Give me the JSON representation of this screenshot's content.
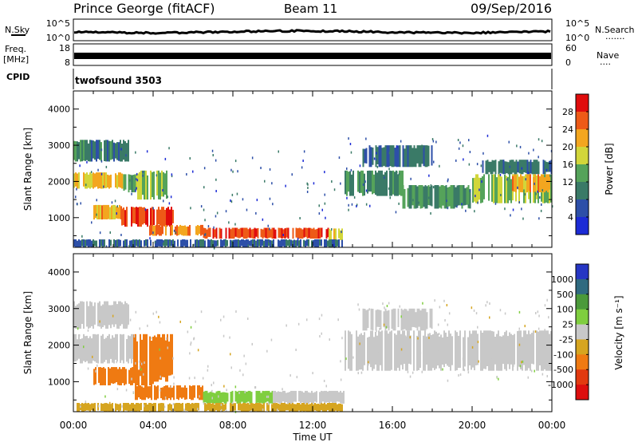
{
  "header": {
    "station": "Prince George (fitACF)",
    "beam": "Beam 11",
    "date": "09/Sep/2016"
  },
  "strip_labels": {
    "nsky": "N.Sky",
    "nsearch": "N.Search",
    "nsearch_dots": ".......",
    "freq_line1": "Freq.",
    "freq_line2": "[MHz]",
    "nave": "Nave",
    "nave_dots": "....",
    "cpid": "CPID",
    "cpid_value": "twofsound 3503",
    "nsky_ticks": [
      "10^5",
      "10^0"
    ],
    "nsearch_ticks": [
      "10^5",
      "10^0"
    ],
    "freq_ticks": [
      "18",
      "8"
    ],
    "nave_ticks": [
      "60",
      "0"
    ]
  },
  "axis": {
    "xlabel": "Time UT",
    "ylabel": "Slant Range [km]",
    "xticks": [
      "00:00",
      "04:00",
      "08:00",
      "12:00",
      "16:00",
      "20:00",
      "00:00"
    ],
    "yticks": [
      "1000",
      "2000",
      "3000",
      "4000"
    ]
  },
  "colorbars": {
    "power": {
      "label": "Power [dB]",
      "ticks": [
        "4",
        "8",
        "12",
        "16",
        "20",
        "24",
        "28"
      ],
      "colors": [
        "#1c2bd6",
        "#2d4fa8",
        "#3a7a67",
        "#55a35a",
        "#d2d63a",
        "#f3a61f",
        "#ee5a17",
        "#e00c0c"
      ]
    },
    "velocity": {
      "label": "Velocity [m s⁻¹]",
      "ticks": [
        "1000",
        "500",
        "100",
        "25",
        "-25",
        "-100",
        "-500",
        "-1000"
      ],
      "colors": [
        "#2636c4",
        "#2f6a80",
        "#4b9a3a",
        "#7fce3f",
        "#c8c8c8",
        "#d6a520",
        "#ef7a12",
        "#e23a10",
        "#dd0e0e"
      ]
    }
  },
  "chart_data": [
    {
      "type": "heatmap",
      "title": "Power",
      "xlabel": "Time UT",
      "ylabel": "Slant Range [km]",
      "xlim": [
        0,
        24
      ],
      "ylim": [
        180,
        4500
      ],
      "colorbar": "Power [dB]",
      "colorbar_range": [
        0,
        30
      ],
      "bands": [
        {
          "t0": 0.0,
          "t1": 2.8,
          "r0": 2550,
          "r1": 3150,
          "value": 10
        },
        {
          "t0": 0.0,
          "t1": 2.5,
          "r0": 1800,
          "r1": 2250,
          "value": 21
        },
        {
          "t0": 2.5,
          "t1": 3.7,
          "r0": 1700,
          "r1": 2200,
          "value": 14
        },
        {
          "t0": 3.2,
          "t1": 4.8,
          "r0": 1500,
          "r1": 2300,
          "value": 16
        },
        {
          "t0": 1.0,
          "t1": 2.4,
          "r0": 950,
          "r1": 1350,
          "value": 22
        },
        {
          "t0": 2.4,
          "t1": 5.0,
          "r0": 750,
          "r1": 1300,
          "value": 28
        },
        {
          "t0": 3.8,
          "t1": 6.5,
          "r0": 500,
          "r1": 800,
          "value": 24
        },
        {
          "t0": 6.5,
          "t1": 12.8,
          "r0": 420,
          "r1": 720,
          "value": 27
        },
        {
          "t0": 12.8,
          "t1": 13.6,
          "r0": 380,
          "r1": 700,
          "value": 18
        },
        {
          "t0": 0.0,
          "t1": 13.5,
          "r0": 180,
          "r1": 400,
          "value": 7
        },
        {
          "t0": 13.6,
          "t1": 16.5,
          "r0": 1600,
          "r1": 2300,
          "value": 11
        },
        {
          "t0": 16.5,
          "t1": 20.0,
          "r0": 1250,
          "r1": 1900,
          "value": 12
        },
        {
          "t0": 20.0,
          "t1": 24.0,
          "r0": 1400,
          "r1": 2200,
          "value": 15
        },
        {
          "t0": 22.0,
          "t1": 24.0,
          "r0": 1700,
          "r1": 2200,
          "value": 22
        },
        {
          "t0": 14.5,
          "t1": 18.0,
          "r0": 2400,
          "r1": 3000,
          "value": 8
        },
        {
          "t0": 20.5,
          "t1": 24.0,
          "r0": 2200,
          "r1": 2600,
          "value": 9
        }
      ]
    },
    {
      "type": "heatmap",
      "title": "Velocity",
      "xlabel": "Time UT",
      "ylabel": "Slant Range [km]",
      "xlim": [
        0,
        24
      ],
      "ylim": [
        180,
        4500
      ],
      "colorbar": "Velocity [m s⁻¹]",
      "colorbar_range": [
        -1000,
        1000
      ],
      "bands": [
        {
          "t0": 0.0,
          "t1": 2.8,
          "r0": 2450,
          "r1": 3200,
          "value": 0
        },
        {
          "t0": 0.0,
          "t1": 3.0,
          "r0": 1500,
          "r1": 2300,
          "value": 0
        },
        {
          "t0": 3.0,
          "t1": 5.0,
          "r0": 1000,
          "r1": 2300,
          "value": -150
        },
        {
          "t0": 1.0,
          "t1": 4.0,
          "r0": 900,
          "r1": 1400,
          "value": -200
        },
        {
          "t0": 3.0,
          "t1": 6.5,
          "r0": 500,
          "r1": 900,
          "value": -120
        },
        {
          "t0": 6.5,
          "t1": 10.0,
          "r0": 400,
          "r1": 750,
          "value": 60
        },
        {
          "t0": 10.0,
          "t1": 13.6,
          "r0": 400,
          "r1": 750,
          "value": 0
        },
        {
          "t0": 13.6,
          "t1": 24.0,
          "r0": 1300,
          "r1": 2400,
          "value": 0
        },
        {
          "t0": 14.5,
          "t1": 18.0,
          "r0": 2400,
          "r1": 3000,
          "value": 0
        },
        {
          "t0": 0.0,
          "t1": 13.5,
          "r0": 180,
          "r1": 420,
          "value": -60
        }
      ]
    }
  ]
}
